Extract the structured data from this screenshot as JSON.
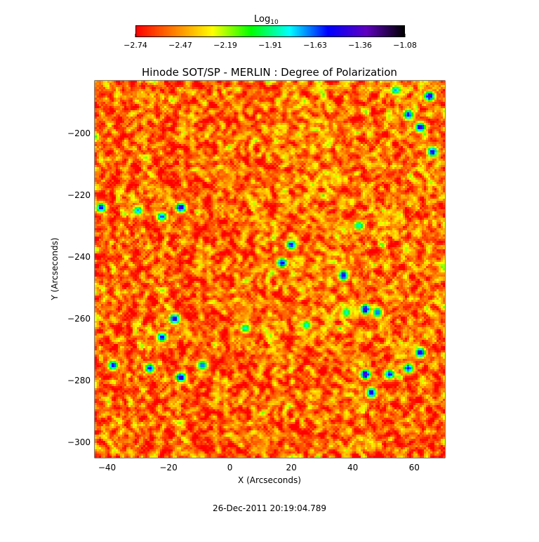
{
  "chart_data": {
    "type": "heatmap",
    "title": "Hinode SOT/SP - MERLIN : Degree of Polarization",
    "xlabel": "X (Arcseconds)",
    "ylabel": "Y (Arcseconds)",
    "timestamp": "26-Dec-2011 20:19:04.789",
    "xlim": [
      -44,
      70
    ],
    "ylim": [
      -305,
      -183
    ],
    "x_ticks": [
      -40,
      -20,
      0,
      20,
      40,
      60
    ],
    "y_ticks": [
      -200,
      -220,
      -240,
      -260,
      -280,
      -300
    ],
    "colorbar": {
      "label_base": "Log",
      "label_sub": "10",
      "range": [
        -2.74,
        -1.08
      ],
      "ticks": [
        "-2.74",
        "-2.47",
        "-2.19",
        "-1.91",
        "-1.63",
        "-1.36",
        "-1.08"
      ],
      "colormap": [
        "#ff0000",
        "#ff8000",
        "#ffff00",
        "#00ff00",
        "#00ffff",
        "#0000ff",
        "#6000c0",
        "#000000"
      ]
    },
    "strong_features": [
      {
        "x": -42,
        "y": -224,
        "value": -1.5
      },
      {
        "x": -30,
        "y": -225,
        "value": -1.7
      },
      {
        "x": -22,
        "y": -227,
        "value": -1.6
      },
      {
        "x": -16,
        "y": -224,
        "value": -1.35
      },
      {
        "x": 20,
        "y": -236,
        "value": -1.5
      },
      {
        "x": 17,
        "y": -242,
        "value": -1.45
      },
      {
        "x": 37,
        "y": -246,
        "value": -1.4
      },
      {
        "x": 44,
        "y": -257,
        "value": -1.35
      },
      {
        "x": 48,
        "y": -258,
        "value": -1.6
      },
      {
        "x": -18,
        "y": -260,
        "value": -1.35
      },
      {
        "x": -22,
        "y": -266,
        "value": -1.5
      },
      {
        "x": -26,
        "y": -276,
        "value": -1.5
      },
      {
        "x": -16,
        "y": -279,
        "value": -1.35
      },
      {
        "x": -9,
        "y": -275,
        "value": -1.6
      },
      {
        "x": -38,
        "y": -275,
        "value": -1.5
      },
      {
        "x": 44,
        "y": -278,
        "value": -1.3
      },
      {
        "x": 46,
        "y": -284,
        "value": -1.4
      },
      {
        "x": 52,
        "y": -278,
        "value": -1.5
      },
      {
        "x": 58,
        "y": -276,
        "value": -1.5
      },
      {
        "x": 62,
        "y": -271,
        "value": -1.4
      },
      {
        "x": 62,
        "y": -198,
        "value": -1.35
      },
      {
        "x": 58,
        "y": -194,
        "value": -1.5
      },
      {
        "x": 65,
        "y": -188,
        "value": -1.35
      },
      {
        "x": 66,
        "y": -206,
        "value": -1.45
      },
      {
        "x": 54,
        "y": -186,
        "value": -1.7
      },
      {
        "x": 38,
        "y": -258,
        "value": -1.8
      },
      {
        "x": 5,
        "y": -263,
        "value": -1.8
      },
      {
        "x": 25,
        "y": -262,
        "value": -1.8
      },
      {
        "x": 42,
        "y": -230,
        "value": -1.8
      }
    ]
  }
}
